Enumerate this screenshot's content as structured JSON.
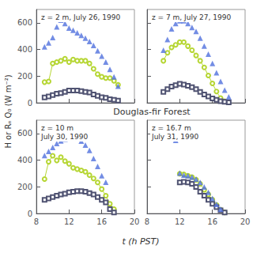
{
  "chart_data": [
    {
      "type": "line",
      "title": "z = 2 m, July 26, 1990",
      "xlim": [
        8,
        20
      ],
      "xticks": [
        8,
        12,
        16,
        20
      ],
      "ylim": [
        0,
        700
      ],
      "yticks": [
        0,
        200,
        400,
        600
      ],
      "grid": false,
      "tick_labels": "y",
      "series": [
        {
          "type": "scatter",
          "marker": "triangle",
          "x": [
            9.0,
            9.5,
            10.0,
            10.5,
            11.0,
            11.5,
            12.0,
            12.5,
            13.0,
            13.5,
            14.0,
            14.5,
            15.0,
            15.5,
            16.0,
            16.5,
            17.0,
            17.5,
            18.0
          ],
          "values": [
            420,
            450,
            490,
            570,
            620,
            595,
            560,
            545,
            525,
            505,
            485,
            460,
            430,
            390,
            350,
            305,
            250,
            195,
            125
          ]
        },
        {
          "type": "line",
          "marker": "open_circle",
          "line_style": "solid",
          "x": [
            9.0,
            9.5,
            10.0,
            10.5,
            11.0,
            11.5,
            12.0,
            12.5,
            13.0,
            13.5,
            14.0,
            14.5,
            15.0,
            15.5,
            16.0,
            16.5,
            17.0,
            17.5,
            18.0
          ],
          "values": [
            155,
            160,
            295,
            305,
            315,
            330,
            305,
            325,
            315,
            315,
            315,
            295,
            255,
            215,
            195,
            185,
            185,
            165,
            135
          ]
        },
        {
          "type": "line",
          "marker": "open_square",
          "line_style": "solid",
          "x": [
            9.0,
            9.5,
            10.0,
            10.5,
            11.0,
            11.5,
            12.0,
            12.5,
            13.0,
            13.5,
            14.0,
            14.5,
            15.0,
            15.5,
            16.0,
            16.5,
            17.0,
            17.5,
            18.0
          ],
          "values": [
            40,
            48,
            58,
            68,
            73,
            82,
            92,
            92,
            92,
            87,
            82,
            77,
            62,
            52,
            42,
            37,
            27,
            22,
            17
          ]
        }
      ]
    },
    {
      "type": "line",
      "title": "z = 7 m, July 27, 1990",
      "xlim": [
        8,
        20
      ],
      "xticks": [
        8,
        12,
        16,
        20
      ],
      "ylim": [
        0,
        700
      ],
      "yticks": [
        0,
        200,
        400,
        600
      ],
      "grid": false,
      "tick_labels": false,
      "series": [
        {
          "type": "scatter",
          "marker": "triangle",
          "x": [
            10.0,
            10.5,
            11.0,
            11.5,
            12.0,
            12.5,
            13.0,
            13.5,
            14.0,
            14.5,
            15.0,
            15.5,
            16.0,
            16.5,
            17.0,
            17.5,
            18.0
          ],
          "values": [
            395,
            475,
            555,
            595,
            615,
            615,
            595,
            565,
            535,
            485,
            425,
            365,
            295,
            225,
            160,
            95,
            45
          ]
        },
        {
          "type": "line",
          "marker": "open_circle",
          "line_style": "solid",
          "x": [
            10.0,
            10.5,
            11.0,
            11.5,
            12.0,
            12.5,
            13.0,
            13.5,
            14.0,
            14.5,
            15.0,
            15.5,
            16.0,
            16.5,
            17.0,
            17.5
          ],
          "values": [
            315,
            375,
            415,
            435,
            455,
            455,
            425,
            395,
            355,
            315,
            265,
            205,
            145,
            85,
            35,
            12
          ]
        },
        {
          "type": "line",
          "marker": "open_square",
          "line_style": "solid",
          "x": [
            10.0,
            10.5,
            11.0,
            11.5,
            12.0,
            12.5,
            13.0,
            13.5,
            14.0,
            14.5,
            15.0,
            15.5,
            16.0,
            16.5,
            17.0,
            17.5,
            18.0
          ],
          "values": [
            82,
            102,
            122,
            132,
            142,
            137,
            127,
            117,
            102,
            82,
            62,
            47,
            32,
            22,
            12,
            7,
            3
          ]
        }
      ]
    },
    {
      "type": "line",
      "title": "z = 10 m\nJuly 30, 1990",
      "xlim": [
        8,
        20
      ],
      "xticks": [
        8,
        12,
        16,
        20
      ],
      "ylim": [
        0,
        700
      ],
      "yticks": [
        0,
        200,
        400,
        600
      ],
      "grid": false,
      "series": [
        {
          "type": "scatter",
          "marker": "triangle",
          "x": [
            9.0,
            9.5,
            10.0,
            10.5,
            11.0,
            11.5,
            12.0,
            12.5,
            13.0,
            13.5,
            14.0,
            14.5,
            15.0,
            15.5,
            16.0,
            16.5
          ],
          "values": [
            435,
            465,
            495,
            525,
            545,
            558,
            568,
            568,
            563,
            543,
            513,
            473,
            413,
            353,
            283,
            235
          ]
        },
        {
          "type": "line",
          "marker": "open_circle",
          "line_style": "solid",
          "x": [
            9.0,
            9.5,
            10.0,
            10.5,
            11.0,
            11.5,
            12.0,
            12.5,
            13.0,
            13.5,
            14.0,
            14.5,
            15.0,
            15.5,
            16.0,
            16.5,
            17.0,
            17.5
          ],
          "values": [
            258,
            388,
            433,
            398,
            423,
            393,
            373,
            343,
            333,
            323,
            313,
            288,
            263,
            233,
            183,
            133,
            73,
            33
          ]
        },
        {
          "type": "line",
          "marker": "open_square",
          "line_style": "solid",
          "x": [
            9.0,
            9.5,
            10.0,
            10.5,
            11.0,
            11.5,
            12.0,
            12.5,
            13.0,
            13.5,
            14.0,
            14.5,
            15.0,
            15.5,
            16.0,
            16.5,
            17.0,
            17.5
          ],
          "values": [
            103,
            113,
            123,
            133,
            143,
            148,
            158,
            163,
            168,
            168,
            163,
            153,
            143,
            123,
            103,
            83,
            33,
            8
          ]
        }
      ]
    },
    {
      "type": "line",
      "title": "z = 16.7 m\nJuly 31, 1990",
      "xlim": [
        8,
        20
      ],
      "xticks": [
        8,
        12,
        16,
        20
      ],
      "ylim": [
        0,
        700
      ],
      "yticks": [
        0,
        200,
        400,
        600
      ],
      "grid": false,
      "tick_labels": "x",
      "series": [
        {
          "type": "scatter",
          "marker": "triangle",
          "x": [
            11.0,
            11.5,
            12.0,
            12.5,
            13.0,
            13.5,
            14.0,
            14.5,
            15.0,
            15.5,
            16.0,
            16.5,
            17.0
          ],
          "values": [
            575,
            548,
            303,
            288,
            283,
            273,
            258,
            233,
            198,
            158,
            113,
            68,
            33
          ]
        },
        {
          "type": "line",
          "marker": "open_circle",
          "line_style": "solid",
          "x": [
            12.0,
            12.5,
            13.0,
            13.5,
            14.0,
            14.5,
            15.0,
            15.5,
            16.0,
            16.5,
            17.0,
            17.5
          ],
          "values": [
            298,
            293,
            283,
            273,
            253,
            223,
            178,
            143,
            103,
            63,
            28,
            8
          ]
        },
        {
          "type": "line",
          "marker": "open_square",
          "line_style": "solid",
          "x": [
            12.0,
            12.5,
            13.0,
            13.5,
            14.0,
            14.5,
            15.0,
            15.5,
            16.0,
            16.5,
            17.0,
            17.5
          ],
          "values": [
            233,
            238,
            233,
            223,
            198,
            163,
            133,
            103,
            73,
            48,
            23,
            8
          ]
        }
      ]
    }
  ],
  "xlabel": "t (h PST)",
  "ylabel": "H or Rₙ Q₀ (W m⁻²)",
  "annotations": [
    "Douglas-fir Forest"
  ]
}
